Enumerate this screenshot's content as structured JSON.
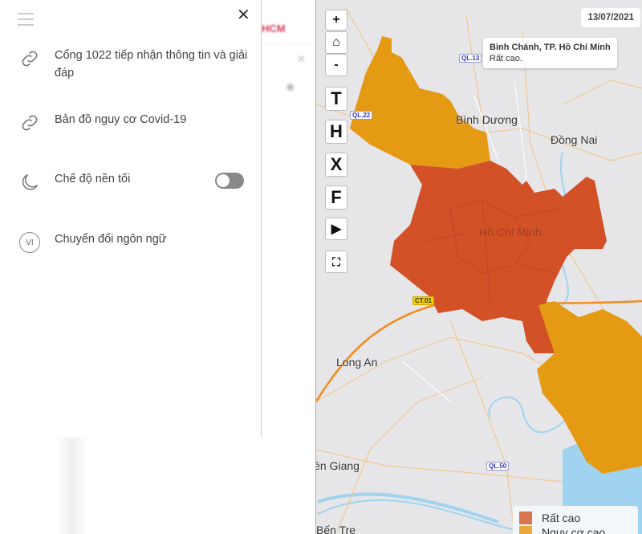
{
  "background": {
    "header_text": "HCM"
  },
  "menu": {
    "items": [
      {
        "label": "Cổng 1022 tiếp nhận thông tin và giải đáp",
        "icon": "link-icon"
      },
      {
        "label": "Bản đồ nguy cơ Covid-19",
        "icon": "link-icon"
      },
      {
        "label": "Chế độ nền tối",
        "icon": "moon-icon",
        "toggle_on": false
      },
      {
        "label": "Chuyển đổi ngôn ngữ",
        "icon": "language-icon",
        "badge": "VI"
      }
    ]
  },
  "map": {
    "controls": {
      "zoom_in": "+",
      "zoom_out": "-",
      "t": "T",
      "h": "H",
      "x": "X",
      "f": "F"
    },
    "date": "13/07/2021",
    "tooltip": {
      "title": "Bình Chánh, TP. Hồ Chí Minh",
      "text": "Rất cao."
    },
    "places": [
      "Bình Dương",
      "Đồng Nai",
      "Hồ Chí Minh",
      "Long An",
      "Tiền Giang",
      "Bến Tre"
    ],
    "road_labels": [
      "QL.13",
      "QL.22",
      "CT.01",
      "QL.50"
    ],
    "legend": [
      {
        "label": "Rất cao",
        "color": "#d9754f"
      },
      {
        "label": "Nguy cơ cao",
        "color": "#e8a93b"
      }
    ],
    "colors": {
      "very_high": "#d25126",
      "high": "#e59a14"
    }
  }
}
